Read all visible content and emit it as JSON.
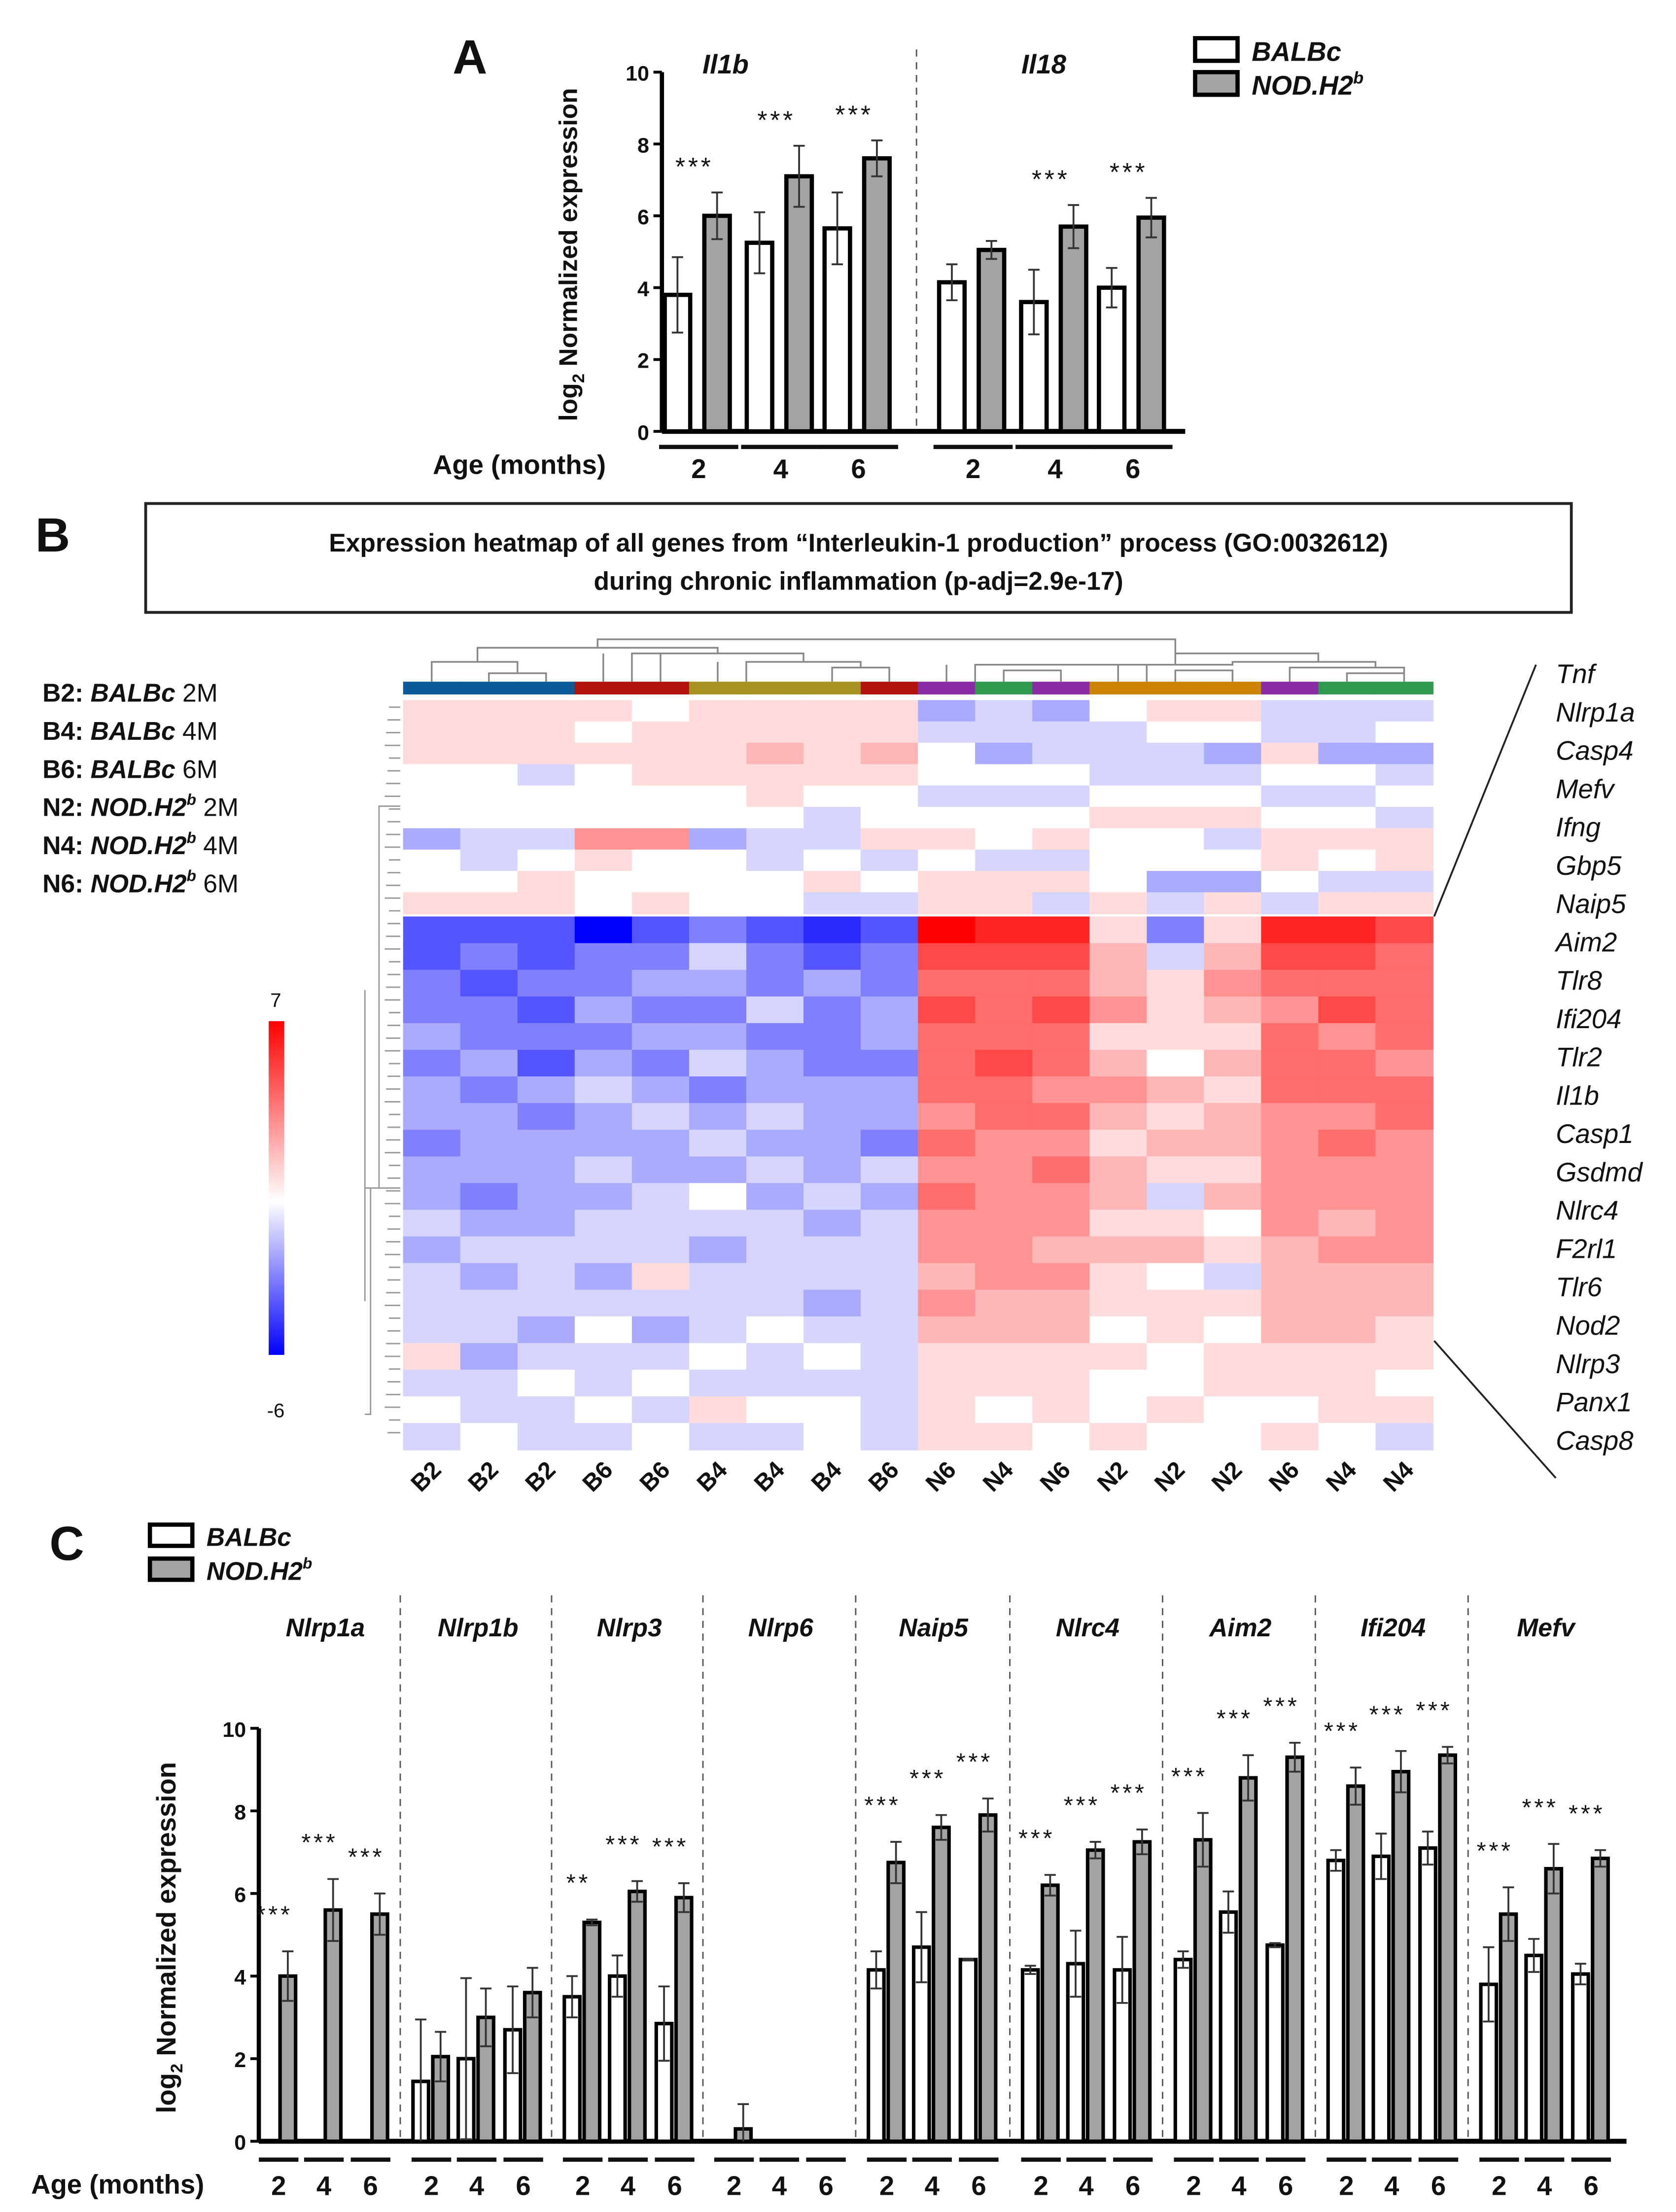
{
  "panel_labels": {
    "a": "A",
    "b": "B",
    "c": "C"
  },
  "legend": {
    "balbc": "BALBc",
    "nod": "NOD.H2",
    "nod_sup": "b"
  },
  "axis": {
    "ylabel_prefix": "log",
    "ylabel_sub": "2",
    "ylabel_rest": " Normalized expression",
    "age_label": "Age (months)"
  },
  "colors": {
    "white_bar": "#ffffff",
    "gray_bar": "#a3a3a6",
    "heat_low": "#0000ff",
    "heat_high": "#ff0000"
  },
  "chart_data": [
    {
      "id": "A",
      "type": "bar",
      "ylabel": "log2 Normalized expression",
      "xlabel": "Age (months)",
      "ylim": [
        0,
        10
      ],
      "yticks": [
        0,
        2,
        4,
        6,
        8,
        10
      ],
      "ages": [
        "2",
        "4",
        "6"
      ],
      "genes": [
        {
          "name": "Il1b",
          "balbc": [
            3.8,
            5.25,
            5.65
          ],
          "balbc_err": [
            1.05,
            0.85,
            1.0
          ],
          "nod": [
            6.0,
            7.1,
            7.6
          ],
          "nod_err": [
            0.65,
            0.85,
            0.5
          ],
          "stars": [
            "***",
            "***",
            "***"
          ]
        },
        {
          "name": "Il18",
          "balbc": [
            4.15,
            3.6,
            4.0
          ],
          "balbc_err": [
            0.5,
            0.9,
            0.55
          ],
          "nod": [
            5.05,
            5.7,
            5.95
          ],
          "nod_err": [
            0.25,
            0.6,
            0.55
          ],
          "stars": [
            "",
            "***",
            "***"
          ]
        }
      ]
    },
    {
      "id": "B",
      "type": "heatmap",
      "title_line1": "Expression heatmap of all genes from “Interleukin-1 production” process (GO:0032612)",
      "title_line2": "during chronic inflammation (p-adj=2.9e-17)",
      "scale_max": "7",
      "scale_min": "-6",
      "range": [
        -6,
        7
      ],
      "sample_legend": [
        {
          "code": "B2:",
          "strain": "BALBc",
          "sup": "",
          "age": " 2M"
        },
        {
          "code": "B4:",
          "strain": "BALBc",
          "sup": "",
          "age": " 4M"
        },
        {
          "code": "B6:",
          "strain": "BALBc",
          "sup": "",
          "age": " 6M"
        },
        {
          "code": "N2:",
          "strain": "NOD.H2",
          "sup": "b",
          "age": " 2M"
        },
        {
          "code": "N4:",
          "strain": "NOD.H2",
          "sup": "b",
          "age": " 4M"
        },
        {
          "code": "N6:",
          "strain": "NOD.H2",
          "sup": "b",
          "age": " 6M"
        }
      ],
      "group_colors": {
        "B2": "#0b5a9b",
        "B6": "#b1140f",
        "B4": "#a6921f",
        "N6": "#8a2ca5",
        "N4": "#2f9a4e",
        "N2": "#cc8400"
      },
      "columns": [
        "B2",
        "B2",
        "B2",
        "B6",
        "B6",
        "B4",
        "B4",
        "B4",
        "B6",
        "N6",
        "N4",
        "N6",
        "N2",
        "N2",
        "N2",
        "N6",
        "N4",
        "N4"
      ],
      "gene_labels": [
        "Tnf",
        "Nlrp1a",
        "Casp4",
        "Mefv",
        "Ifng",
        "Gbp5",
        "Naip5",
        "Aim2",
        "Tlr8",
        "Ifi204",
        "Tlr2",
        "Il1b",
        "Casp1",
        "Gsdmd",
        "Nlrc4",
        "F2rl1",
        "Tlr6",
        "Nod2",
        "Nlrp3",
        "Panx1",
        "Casp8"
      ],
      "matrix_top": [
        [
          1,
          1,
          1,
          1,
          0,
          1,
          1,
          1,
          1,
          -2,
          -1,
          -2,
          0,
          1,
          1,
          -1,
          -1,
          -1
        ],
        [
          1,
          1,
          1,
          0,
          1,
          1,
          1,
          1,
          1,
          -1,
          -1,
          -1,
          -1,
          0,
          0,
          -1,
          -1,
          0
        ],
        [
          1,
          1,
          1,
          1,
          1,
          1,
          2,
          1,
          2,
          0,
          -2,
          -1,
          -1,
          -1,
          -2,
          1,
          -2,
          -2
        ],
        [
          0,
          0,
          -1,
          0,
          1,
          1,
          1,
          1,
          1,
          0,
          0,
          0,
          -1,
          -1,
          -1,
          0,
          0,
          -1
        ],
        [
          0,
          0,
          0,
          0,
          0,
          0,
          1,
          0,
          0,
          -1,
          -1,
          -1,
          0,
          0,
          0,
          -1,
          -1,
          0
        ],
        [
          0,
          0,
          0,
          0,
          0,
          0,
          0,
          -1,
          0,
          0,
          0,
          0,
          1,
          1,
          1,
          0,
          0,
          -1
        ],
        [
          -2,
          -1,
          -1,
          3,
          3,
          -2,
          -1,
          -1,
          1,
          1,
          0,
          1,
          0,
          0,
          -1,
          1,
          1,
          1
        ],
        [
          0,
          -1,
          0,
          1,
          0,
          0,
          -1,
          0,
          -1,
          0,
          -1,
          -1,
          0,
          0,
          0,
          1,
          0,
          1
        ],
        [
          0,
          0,
          1,
          0,
          0,
          0,
          0,
          1,
          0,
          1,
          1,
          1,
          0,
          -2,
          -2,
          0,
          -1,
          -1
        ],
        [
          1,
          1,
          1,
          0,
          1,
          0,
          0,
          -1,
          -1,
          1,
          1,
          -1,
          1,
          -1,
          1,
          -1,
          1,
          1
        ]
      ],
      "matrix_bottom": [
        [
          -4,
          -4,
          -4,
          -6,
          -4,
          -3,
          -4,
          -5,
          -4,
          7,
          6,
          6,
          1,
          -3,
          1,
          6,
          6,
          5
        ],
        [
          -4,
          -3,
          -4,
          -3,
          -3,
          -1,
          -3,
          -4,
          -3,
          5,
          5,
          5,
          2,
          -1,
          2,
          5,
          5,
          4
        ],
        [
          -3,
          -4,
          -3,
          -3,
          -2,
          -2,
          -3,
          -2,
          -3,
          4,
          4,
          4,
          2,
          1,
          3,
          4,
          4,
          4
        ],
        [
          -3,
          -3,
          -4,
          -2,
          -3,
          -3,
          -1,
          -3,
          -2,
          5,
          4,
          5,
          3,
          1,
          2,
          3,
          5,
          4
        ],
        [
          -2,
          -3,
          -3,
          -3,
          -2,
          -2,
          -3,
          -3,
          -2,
          4,
          4,
          4,
          1,
          1,
          1,
          4,
          3,
          4
        ],
        [
          -3,
          -2,
          -4,
          -2,
          -3,
          -1,
          -2,
          -3,
          -3,
          4,
          5,
          4,
          2,
          0,
          2,
          4,
          4,
          3
        ],
        [
          -2,
          -3,
          -2,
          -1,
          -2,
          -3,
          -2,
          -2,
          -2,
          4,
          4,
          3,
          3,
          2,
          1,
          4,
          4,
          4
        ],
        [
          -2,
          -2,
          -3,
          -2,
          -1,
          -2,
          -1,
          -2,
          -2,
          3,
          4,
          4,
          2,
          1,
          2,
          3,
          3,
          4
        ],
        [
          -3,
          -2,
          -2,
          -2,
          -2,
          -1,
          -2,
          -2,
          -3,
          4,
          3,
          3,
          1,
          2,
          2,
          3,
          4,
          3
        ],
        [
          -2,
          -2,
          -2,
          -1,
          -2,
          -2,
          -1,
          -2,
          -1,
          3,
          3,
          4,
          2,
          1,
          1,
          3,
          3,
          3
        ],
        [
          -2,
          -3,
          -2,
          -2,
          -1,
          0,
          -2,
          -1,
          -2,
          4,
          3,
          3,
          2,
          -1,
          2,
          3,
          3,
          3
        ],
        [
          -1,
          -2,
          -2,
          -1,
          -1,
          -1,
          -1,
          -2,
          -1,
          3,
          3,
          3,
          1,
          1,
          0,
          3,
          2,
          3
        ],
        [
          -2,
          -1,
          -1,
          -1,
          -1,
          -2,
          -1,
          -1,
          -1,
          3,
          3,
          2,
          2,
          2,
          1,
          2,
          3,
          3
        ],
        [
          -1,
          -2,
          -1,
          -2,
          1,
          -1,
          -1,
          -1,
          -1,
          2,
          3,
          3,
          1,
          0,
          -1,
          2,
          2,
          2
        ],
        [
          -1,
          -1,
          -1,
          -1,
          -1,
          -1,
          -1,
          -2,
          -1,
          3,
          2,
          2,
          1,
          1,
          1,
          2,
          2,
          2
        ],
        [
          -1,
          -1,
          -2,
          0,
          -2,
          -1,
          0,
          -1,
          -1,
          2,
          2,
          2,
          0,
          1,
          0,
          2,
          2,
          1
        ],
        [
          1,
          -2,
          -1,
          -1,
          -1,
          0,
          -1,
          0,
          -1,
          1,
          1,
          1,
          1,
          0,
          1,
          1,
          1,
          1
        ],
        [
          -1,
          -1,
          0,
          -1,
          0,
          -1,
          -1,
          -1,
          -1,
          1,
          1,
          1,
          0,
          0,
          1,
          1,
          1,
          0
        ],
        [
          0,
          -1,
          -1,
          0,
          -1,
          1,
          0,
          0,
          -1,
          1,
          0,
          1,
          0,
          1,
          0,
          0,
          1,
          1
        ],
        [
          -1,
          0,
          -1,
          -1,
          0,
          -1,
          -1,
          0,
          -1,
          1,
          1,
          0,
          1,
          0,
          0,
          1,
          0,
          -1
        ]
      ]
    },
    {
      "id": "C",
      "type": "bar",
      "ylabel": "log2 Normalized expression",
      "xlabel": "Age (months)",
      "ylim": [
        0,
        10
      ],
      "yticks": [
        0,
        2,
        4,
        6,
        8,
        10
      ],
      "ages": [
        "2",
        "4",
        "6"
      ],
      "genes": [
        {
          "name": "Nlrp1a",
          "balbc": [
            0,
            0,
            0
          ],
          "balbc_err": [
            0,
            0,
            0
          ],
          "nod": [
            4.0,
            5.6,
            5.5
          ],
          "nod_err": [
            0.6,
            0.75,
            0.5
          ],
          "stars": [
            "***",
            "***",
            "***"
          ]
        },
        {
          "name": "Nlrp1b",
          "balbc": [
            1.45,
            2.0,
            2.7
          ],
          "balbc_err": [
            1.5,
            1.95,
            1.05
          ],
          "nod": [
            2.05,
            3.0,
            3.6
          ],
          "nod_err": [
            0.6,
            0.7,
            0.6
          ],
          "stars": [
            "",
            "",
            ""
          ]
        },
        {
          "name": "Nlrp3",
          "balbc": [
            3.5,
            4.0,
            2.85
          ],
          "balbc_err": [
            0.5,
            0.5,
            0.9
          ],
          "nod": [
            5.3,
            6.05,
            5.9
          ],
          "nod_err": [
            0.07,
            0.25,
            0.35
          ],
          "stars": [
            "**",
            "***",
            "***"
          ]
        },
        {
          "name": "Nlrp6",
          "balbc": [
            0,
            0,
            0
          ],
          "balbc_err": [
            0,
            0,
            0
          ],
          "nod": [
            0.3,
            0,
            0
          ],
          "nod_err": [
            0.6,
            0,
            0
          ],
          "stars": [
            "",
            "",
            ""
          ]
        },
        {
          "name": "Naip5",
          "balbc": [
            4.15,
            4.7,
            4.4
          ],
          "balbc_err": [
            0.45,
            0.85,
            0.02
          ],
          "nod": [
            6.75,
            7.6,
            7.9
          ],
          "nod_err": [
            0.5,
            0.3,
            0.4
          ],
          "stars": [
            "***",
            "***",
            "***"
          ]
        },
        {
          "name": "Nlrc4",
          "balbc": [
            4.15,
            4.3,
            4.15
          ],
          "balbc_err": [
            0.1,
            0.8,
            0.8
          ],
          "nod": [
            6.2,
            7.05,
            7.25
          ],
          "nod_err": [
            0.25,
            0.2,
            0.3
          ],
          "stars": [
            "***",
            "***",
            "***"
          ]
        },
        {
          "name": "Aim2",
          "balbc": [
            4.4,
            5.55,
            4.75
          ],
          "balbc_err": [
            0.2,
            0.5,
            0.05
          ],
          "nod": [
            7.3,
            8.8,
            9.3
          ],
          "nod_err": [
            0.65,
            0.55,
            0.35
          ],
          "stars": [
            "***",
            "***",
            "***"
          ]
        },
        {
          "name": "Ifi204",
          "balbc": [
            6.8,
            6.9,
            7.1
          ],
          "balbc_err": [
            0.25,
            0.55,
            0.4
          ],
          "nod": [
            8.6,
            8.95,
            9.35
          ],
          "nod_err": [
            0.45,
            0.5,
            0.2
          ],
          "stars": [
            "***",
            "***",
            "***"
          ]
        },
        {
          "name": "Mefv",
          "balbc": [
            3.8,
            4.5,
            4.05
          ],
          "balbc_err": [
            0.9,
            0.4,
            0.25
          ],
          "nod": [
            5.5,
            6.6,
            6.85
          ],
          "nod_err": [
            0.65,
            0.6,
            0.2
          ],
          "stars": [
            "***",
            "***",
            "***"
          ]
        }
      ]
    }
  ]
}
